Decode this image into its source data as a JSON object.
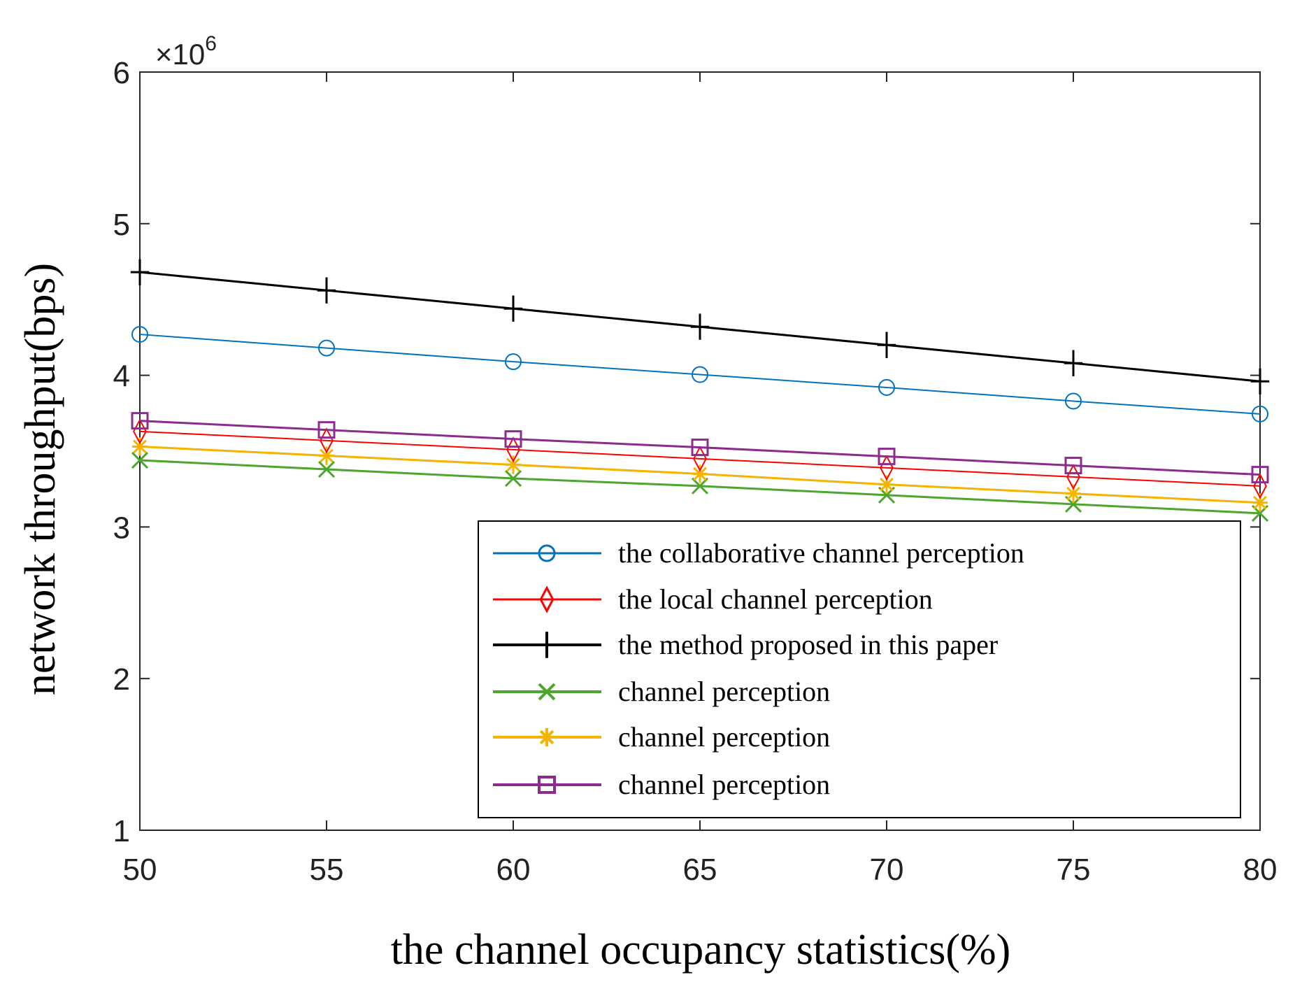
{
  "chart_data": {
    "type": "line",
    "title": "",
    "xlabel": "the channel occupancy statistics(%)",
    "ylabel": "network throughput(bps)",
    "y_exponent_label": {
      "base": "×10",
      "exp": "6"
    },
    "x": [
      50,
      55,
      60,
      65,
      70,
      75,
      80
    ],
    "xlim": [
      50,
      80
    ],
    "ylim": [
      1,
      6
    ],
    "y_scale": 1000000,
    "xticks": [
      50,
      55,
      60,
      65,
      70,
      75,
      80
    ],
    "yticks": [
      1,
      2,
      3,
      4,
      5,
      6
    ],
    "grid": false,
    "legend_position": "bottom-right",
    "series": [
      {
        "name": "the collaborative channel perception",
        "color": "#0072BD",
        "marker": "circle",
        "width": 2,
        "values": [
          4.27,
          4.18,
          4.09,
          4.005,
          3.92,
          3.83,
          3.745
        ]
      },
      {
        "name": "the local channel perception",
        "color": "#FF0000",
        "marker": "diamond",
        "width": 2,
        "values": [
          3.63,
          3.57,
          3.51,
          3.45,
          3.39,
          3.33,
          3.27
        ]
      },
      {
        "name": "the method proposed in this paper",
        "color": "#000000",
        "marker": "plus",
        "width": 3,
        "values": [
          4.68,
          4.56,
          4.44,
          4.32,
          4.2,
          4.08,
          3.96
        ]
      },
      {
        "name": "channel perception",
        "color": "#4DA62E",
        "marker": "x",
        "width": 3,
        "values": [
          3.44,
          3.38,
          3.32,
          3.27,
          3.21,
          3.15,
          3.09
        ]
      },
      {
        "name": "channel perception",
        "color": "#F5B400",
        "marker": "asterisk",
        "width": 3,
        "values": [
          3.53,
          3.47,
          3.41,
          3.35,
          3.28,
          3.22,
          3.16
        ]
      },
      {
        "name": "channel perception",
        "color": "#8B2C8E",
        "marker": "square",
        "width": 3,
        "values": [
          3.7,
          3.64,
          3.58,
          3.525,
          3.465,
          3.405,
          3.345
        ]
      }
    ]
  }
}
